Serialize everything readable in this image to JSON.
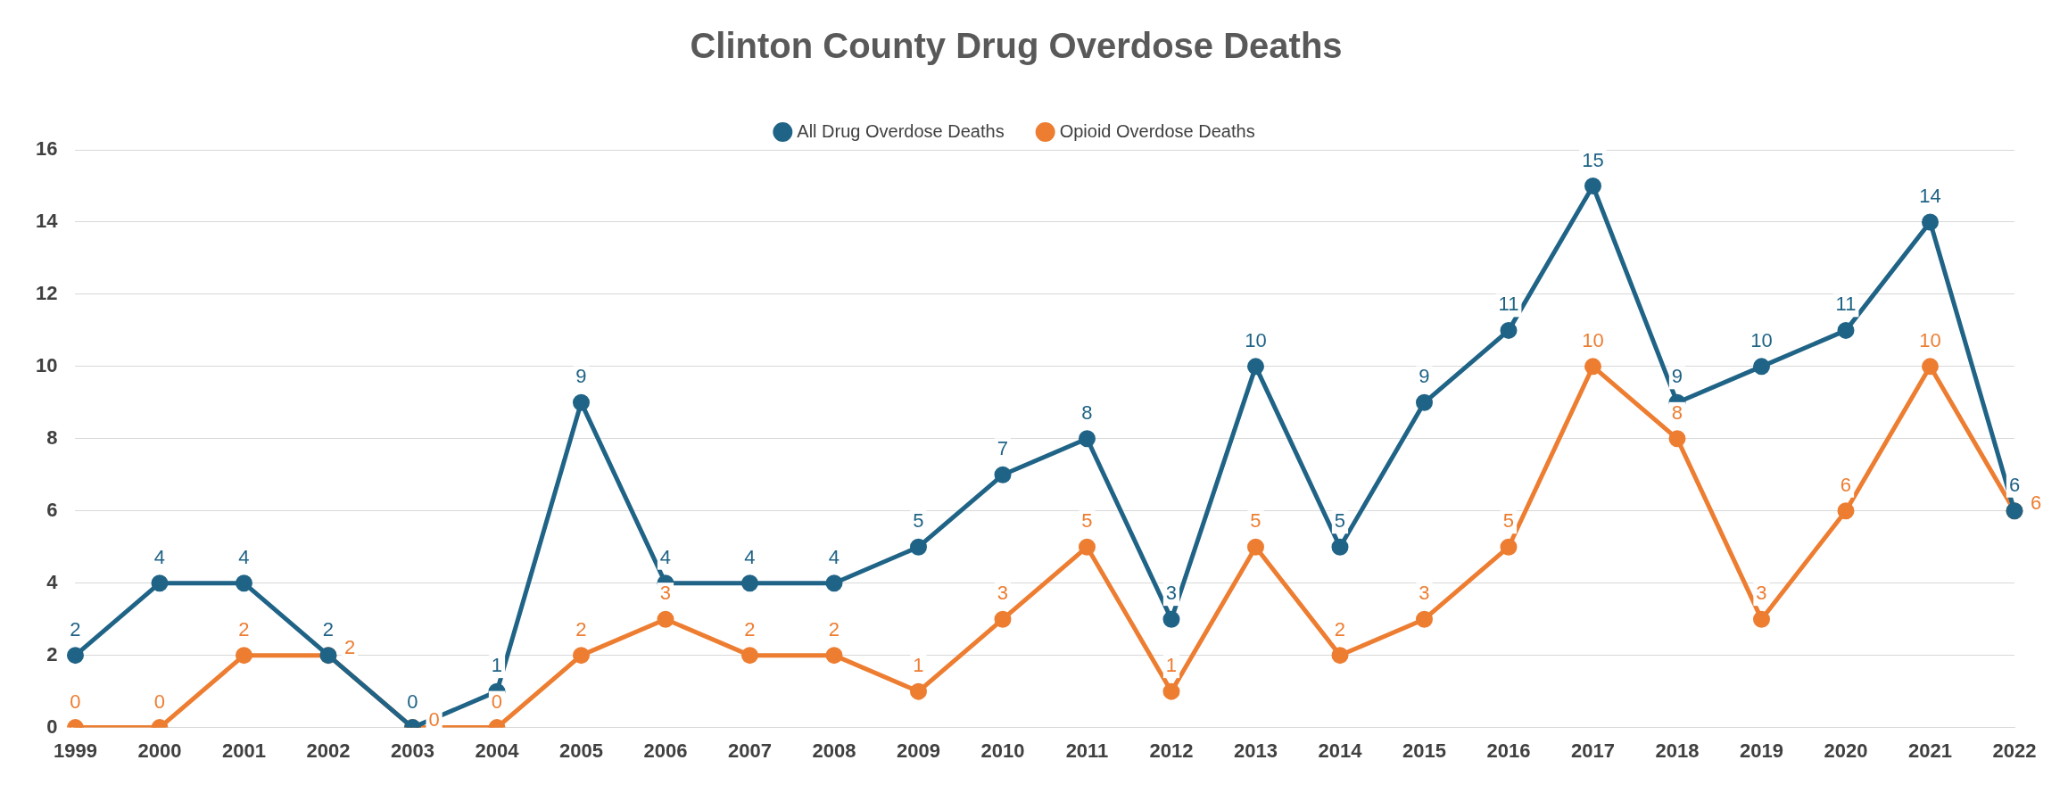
{
  "chart_data": {
    "type": "line",
    "title": "Clinton County Drug Overdose Deaths",
    "categories": [
      "1999",
      "2000",
      "2001",
      "2002",
      "2003",
      "2004",
      "2005",
      "2006",
      "2007",
      "2008",
      "2009",
      "2010",
      "2011",
      "2012",
      "2013",
      "2014",
      "2015",
      "2016",
      "2017",
      "2018",
      "2019",
      "2020",
      "2021",
      "2022"
    ],
    "series": [
      {
        "name": "All Drug Overdose Deaths",
        "color": "#1f6386",
        "values": [
          2,
          4,
          4,
          2,
          0,
          1,
          9,
          4,
          4,
          4,
          5,
          7,
          8,
          3,
          10,
          5,
          9,
          11,
          15,
          9,
          10,
          11,
          14,
          6
        ]
      },
      {
        "name": "Opioid Overdose Deaths",
        "color": "#ed7d31",
        "values": [
          0,
          0,
          2,
          2,
          0,
          0,
          2,
          3,
          2,
          2,
          1,
          3,
          5,
          1,
          5,
          2,
          3,
          5,
          10,
          8,
          3,
          6,
          10,
          6
        ]
      }
    ],
    "ylim": [
      0,
      16
    ],
    "yticks": [
      0,
      2,
      4,
      6,
      8,
      10,
      12,
      14,
      16
    ],
    "grid": "y",
    "legend": "top",
    "marker": "circle",
    "line_style": "solid",
    "data_labels": true
  }
}
